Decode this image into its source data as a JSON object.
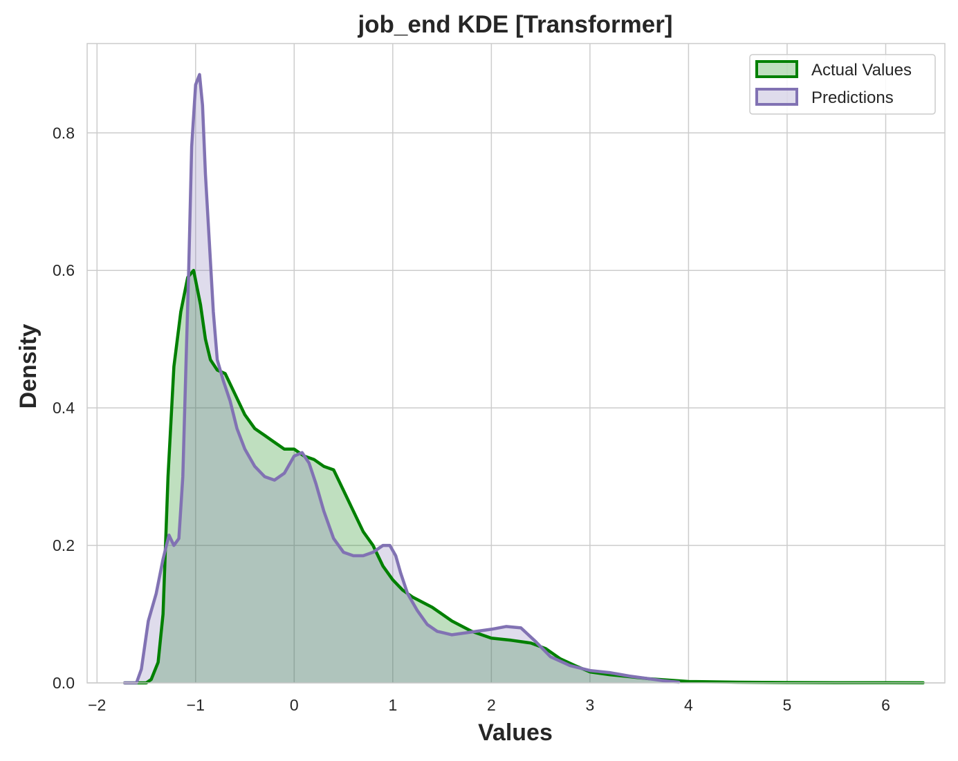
{
  "chart_data": {
    "type": "area",
    "title": "job_end KDE [Transformer]",
    "xlabel": "Values",
    "ylabel": "Density",
    "xlim": [
      -2.1,
      6.6
    ],
    "ylim": [
      0,
      0.93
    ],
    "xticks": [
      -2,
      -1,
      0,
      1,
      2,
      3,
      4,
      5,
      6
    ],
    "xtick_labels": [
      "−2",
      "−1",
      "0",
      "1",
      "2",
      "3",
      "4",
      "5",
      "6"
    ],
    "yticks": [
      0.0,
      0.2,
      0.4,
      0.6,
      0.8
    ],
    "ytick_labels": [
      "0.0",
      "0.2",
      "0.4",
      "0.6",
      "0.8"
    ],
    "grid": true,
    "legend_position": "top-right",
    "series": [
      {
        "name": "Actual Values",
        "line_color": "#008000",
        "fill_color": "#008000",
        "fill_opacity": 0.25,
        "x": [
          -1.72,
          -1.5,
          -1.45,
          -1.38,
          -1.33,
          -1.28,
          -1.22,
          -1.15,
          -1.08,
          -1.02,
          -0.95,
          -0.9,
          -0.85,
          -0.78,
          -0.7,
          -0.6,
          -0.5,
          -0.4,
          -0.3,
          -0.2,
          -0.1,
          0.0,
          0.1,
          0.2,
          0.3,
          0.4,
          0.5,
          0.6,
          0.7,
          0.8,
          0.9,
          1.0,
          1.1,
          1.2,
          1.4,
          1.6,
          1.8,
          2.0,
          2.2,
          2.4,
          2.55,
          2.7,
          2.85,
          3.0,
          3.2,
          3.4,
          3.6,
          3.8,
          4.0,
          4.5,
          5.0,
          5.5,
          6.0,
          6.38
        ],
        "y": [
          0.0,
          0.0,
          0.005,
          0.03,
          0.1,
          0.3,
          0.46,
          0.54,
          0.59,
          0.6,
          0.55,
          0.5,
          0.47,
          0.455,
          0.45,
          0.42,
          0.39,
          0.37,
          0.36,
          0.35,
          0.34,
          0.34,
          0.33,
          0.325,
          0.315,
          0.31,
          0.28,
          0.25,
          0.22,
          0.2,
          0.17,
          0.15,
          0.135,
          0.125,
          0.11,
          0.09,
          0.075,
          0.065,
          0.062,
          0.058,
          0.05,
          0.035,
          0.025,
          0.016,
          0.012,
          0.009,
          0.006,
          0.004,
          0.002,
          0.001,
          0.0005,
          0.0003,
          0.0002,
          0.0001
        ]
      },
      {
        "name": "Predictions",
        "line_color": "#8172b3",
        "fill_color": "#8172b3",
        "fill_opacity": 0.25,
        "x": [
          -1.72,
          -1.6,
          -1.55,
          -1.48,
          -1.4,
          -1.33,
          -1.27,
          -1.22,
          -1.17,
          -1.13,
          -1.1,
          -1.07,
          -1.04,
          -1.0,
          -0.96,
          -0.93,
          -0.9,
          -0.86,
          -0.82,
          -0.78,
          -0.72,
          -0.65,
          -0.58,
          -0.5,
          -0.4,
          -0.3,
          -0.2,
          -0.1,
          0.0,
          0.08,
          0.15,
          0.22,
          0.3,
          0.4,
          0.5,
          0.6,
          0.7,
          0.8,
          0.9,
          0.97,
          1.03,
          1.08,
          1.15,
          1.25,
          1.35,
          1.45,
          1.6,
          1.8,
          2.0,
          2.15,
          2.3,
          2.45,
          2.6,
          2.8,
          3.0,
          3.2,
          3.4,
          3.6,
          3.75,
          3.9
        ],
        "y": [
          0.0,
          0.0,
          0.02,
          0.09,
          0.13,
          0.18,
          0.215,
          0.2,
          0.21,
          0.3,
          0.45,
          0.6,
          0.78,
          0.87,
          0.885,
          0.84,
          0.74,
          0.64,
          0.54,
          0.47,
          0.44,
          0.41,
          0.37,
          0.34,
          0.315,
          0.3,
          0.295,
          0.305,
          0.33,
          0.335,
          0.32,
          0.29,
          0.25,
          0.21,
          0.19,
          0.185,
          0.185,
          0.19,
          0.2,
          0.2,
          0.185,
          0.16,
          0.13,
          0.105,
          0.085,
          0.075,
          0.07,
          0.074,
          0.078,
          0.082,
          0.08,
          0.06,
          0.038,
          0.025,
          0.018,
          0.015,
          0.01,
          0.006,
          0.003,
          0.001
        ]
      }
    ]
  }
}
